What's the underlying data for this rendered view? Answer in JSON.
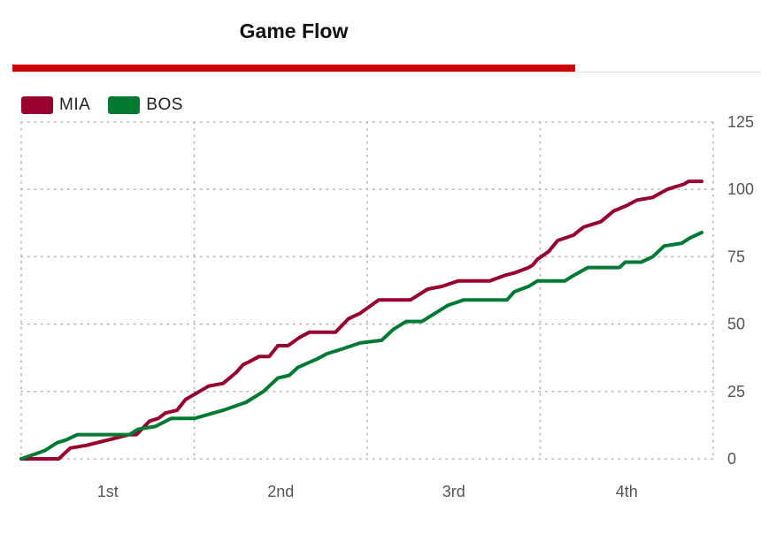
{
  "header": {
    "title": "Game Flow",
    "accent_color": "#cc0000"
  },
  "chart_data": {
    "type": "line",
    "title": "Game Flow",
    "xlabel": "",
    "ylabel": "",
    "xlim": [
      0,
      48
    ],
    "ylim": [
      0,
      125
    ],
    "y_ticks": [
      0,
      25,
      50,
      75,
      100,
      125
    ],
    "x_ticks": [
      {
        "label": "1st",
        "pos": 6
      },
      {
        "label": "2nd",
        "pos": 18
      },
      {
        "label": "3rd",
        "pos": 30
      },
      {
        "label": "4th",
        "pos": 42
      }
    ],
    "grid": true,
    "legend_position": "top-left",
    "series": [
      {
        "name": "MIA",
        "color": "#98002e",
        "points": [
          [
            0,
            0
          ],
          [
            2.6,
            0
          ],
          [
            3.4,
            4
          ],
          [
            4.5,
            5
          ],
          [
            6,
            7
          ],
          [
            7.5,
            9
          ],
          [
            8,
            9
          ],
          [
            8.9,
            14
          ],
          [
            9.5,
            15
          ],
          [
            10,
            17
          ],
          [
            10.8,
            18
          ],
          [
            11.4,
            22
          ],
          [
            13,
            27
          ],
          [
            14,
            28
          ],
          [
            14.9,
            32
          ],
          [
            15.4,
            35
          ],
          [
            15.8,
            36
          ],
          [
            16.5,
            38
          ],
          [
            17.2,
            38
          ],
          [
            17.8,
            42
          ],
          [
            18.5,
            42
          ],
          [
            19.3,
            45
          ],
          [
            20,
            47
          ],
          [
            21.8,
            47
          ],
          [
            22.7,
            52
          ],
          [
            23.5,
            54
          ],
          [
            24.8,
            59
          ],
          [
            27,
            59
          ],
          [
            28.2,
            63
          ],
          [
            29.2,
            64
          ],
          [
            30.3,
            66
          ],
          [
            32.5,
            66
          ],
          [
            33.5,
            68
          ],
          [
            34.2,
            69
          ],
          [
            35.2,
            71
          ],
          [
            35.5,
            72
          ],
          [
            35.8,
            74
          ],
          [
            36.6,
            77
          ],
          [
            37.2,
            81
          ],
          [
            38.3,
            83
          ],
          [
            39,
            86
          ],
          [
            40.2,
            88
          ],
          [
            41.1,
            92
          ],
          [
            42,
            94
          ],
          [
            42.7,
            96
          ],
          [
            43.8,
            97
          ],
          [
            44.8,
            100
          ],
          [
            46,
            102
          ],
          [
            46.3,
            103
          ],
          [
            47.2,
            103
          ]
        ]
      },
      {
        "name": "BOS",
        "color": "#007a33",
        "points": [
          [
            0,
            0
          ],
          [
            1.6,
            3
          ],
          [
            2.5,
            6
          ],
          [
            3.1,
            7
          ],
          [
            3.9,
            9
          ],
          [
            5.2,
            9
          ],
          [
            7.5,
            9
          ],
          [
            8.1,
            11
          ],
          [
            9.3,
            12
          ],
          [
            10.4,
            15
          ],
          [
            12,
            15
          ],
          [
            14,
            18
          ],
          [
            15.6,
            21
          ],
          [
            16.8,
            25
          ],
          [
            17.8,
            30
          ],
          [
            18.6,
            31
          ],
          [
            19.2,
            34
          ],
          [
            20.5,
            37
          ],
          [
            21.2,
            39
          ],
          [
            22.4,
            41
          ],
          [
            23.5,
            43
          ],
          [
            25,
            44
          ],
          [
            25.8,
            48
          ],
          [
            26.7,
            51
          ],
          [
            27.8,
            51
          ],
          [
            28.7,
            54
          ],
          [
            29.6,
            57
          ],
          [
            30.7,
            59
          ],
          [
            33.7,
            59
          ],
          [
            34.2,
            62
          ],
          [
            35.2,
            64
          ],
          [
            35.8,
            66
          ],
          [
            37.7,
            66
          ],
          [
            38.3,
            68
          ],
          [
            39.3,
            71
          ],
          [
            41.5,
            71
          ],
          [
            41.9,
            73
          ],
          [
            43,
            73
          ],
          [
            43.8,
            75
          ],
          [
            44.6,
            79
          ],
          [
            45.8,
            80
          ],
          [
            46.4,
            82
          ],
          [
            47.2,
            84
          ]
        ]
      }
    ]
  }
}
